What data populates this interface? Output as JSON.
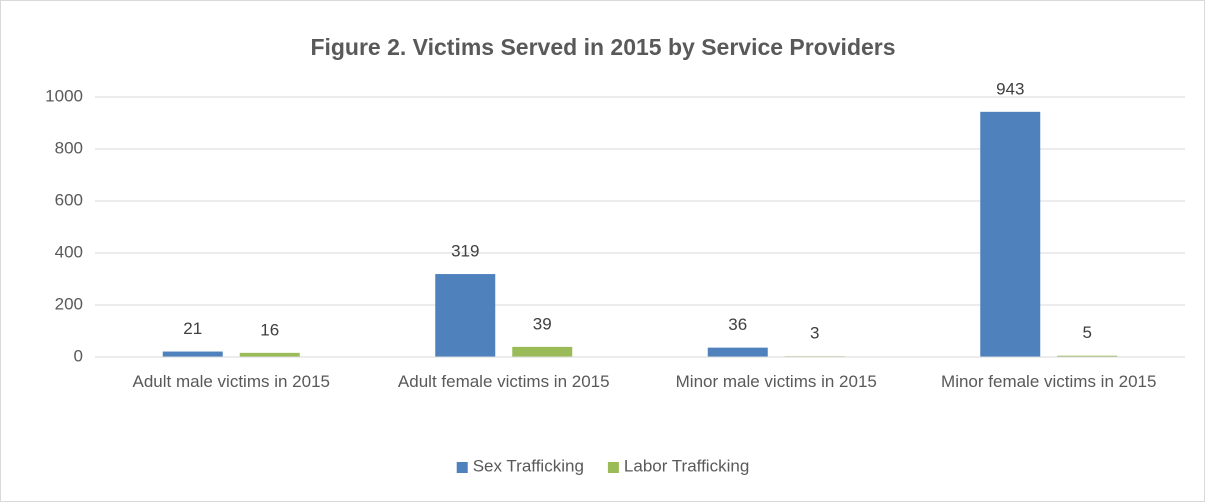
{
  "chart_data": {
    "type": "bar",
    "title": "Figure 2. Victims Served in 2015 by Service Providers",
    "categories": [
      "Adult male victims in 2015",
      "Adult female victims in 2015",
      "Minor male victims in 2015",
      "Minor female victims in 2015"
    ],
    "series": [
      {
        "name": "Sex Trafficking",
        "color": "#4f81bd",
        "values": [
          21,
          319,
          36,
          943
        ]
      },
      {
        "name": "Labor Trafficking",
        "color": "#9bbb59",
        "values": [
          16,
          39,
          3,
          5
        ]
      }
    ],
    "ylim": [
      0,
      1000
    ],
    "yticks": [
      0,
      200,
      400,
      600,
      800,
      1000
    ],
    "grid": true,
    "legend": "bottom"
  }
}
